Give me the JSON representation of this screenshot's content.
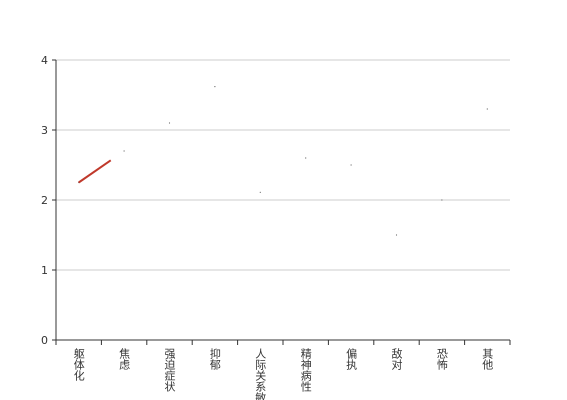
{
  "chart_data": {
    "type": "line",
    "categories": [
      "躯体化",
      "焦虑",
      "强迫症状",
      "抑郁",
      "人际关系敏感",
      "精神病性",
      "偏执",
      "敌对",
      "恐怖",
      "其他"
    ],
    "series": [
      {
        "color": "#c0392b",
        "values": [
          2.25,
          2.7,
          3.1,
          3.62,
          2.11,
          2.6,
          2.5,
          1.5,
          2.0,
          3.3
        ]
      }
    ],
    "ylim": [
      0,
      4
    ],
    "yticks": [
      0,
      1,
      2,
      3,
      4
    ],
    "grid": true
  }
}
